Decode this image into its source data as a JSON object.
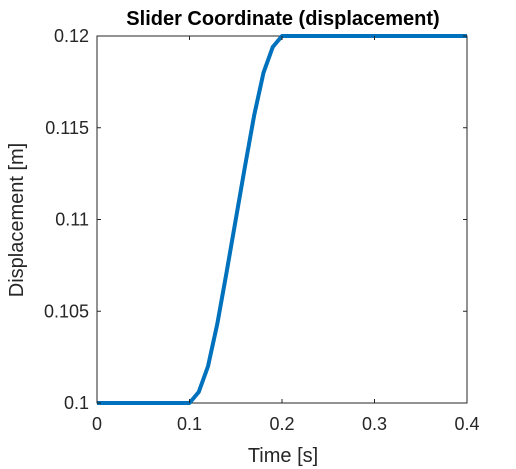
{
  "chart_data": {
    "type": "line",
    "title": "Slider Coordinate (displacement)",
    "xlabel": "Time [s]",
    "ylabel": "Displacement [m]",
    "xlim": [
      0,
      0.4
    ],
    "ylim": [
      0.1,
      0.12
    ],
    "x_ticks": [
      0,
      0.1,
      0.2,
      0.3,
      0.4
    ],
    "x_tick_labels": [
      "0",
      "0.1",
      "0.2",
      "0.3",
      "0.4"
    ],
    "y_ticks": [
      0.1,
      0.105,
      0.11,
      0.115,
      0.12
    ],
    "y_tick_labels": [
      "0.1",
      "0.105",
      "0.11",
      "0.115",
      "0.12"
    ],
    "grid": false,
    "series": [
      {
        "color": "#0072BD",
        "x": [
          0,
          0.1,
          0.11,
          0.12,
          0.13,
          0.14,
          0.15,
          0.16,
          0.17,
          0.18,
          0.19,
          0.2,
          0.21,
          0.3,
          0.4
        ],
        "y": [
          0.1,
          0.1,
          0.1006,
          0.102,
          0.1043,
          0.1071,
          0.11,
          0.1129,
          0.1157,
          0.118,
          0.1194,
          0.12,
          0.12,
          0.12,
          0.12
        ]
      }
    ]
  }
}
